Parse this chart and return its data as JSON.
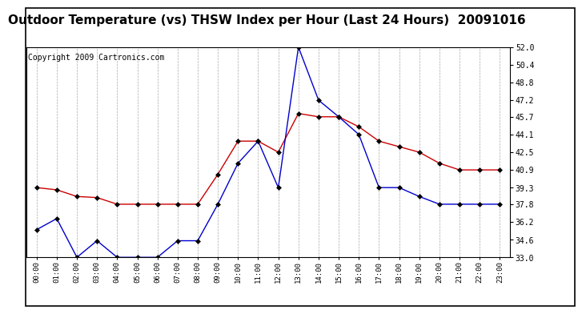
{
  "title": "Outdoor Temperature (vs) THSW Index per Hour (Last 24 Hours)  20091016",
  "copyright": "Copyright 2009 Cartronics.com",
  "hours": [
    0,
    1,
    2,
    3,
    4,
    5,
    6,
    7,
    8,
    9,
    10,
    11,
    12,
    13,
    14,
    15,
    16,
    17,
    18,
    19,
    20,
    21,
    22,
    23
  ],
  "hour_labels": [
    "00:00",
    "01:00",
    "02:00",
    "03:00",
    "04:00",
    "05:00",
    "06:00",
    "07:00",
    "08:00",
    "09:00",
    "10:00",
    "11:00",
    "12:00",
    "13:00",
    "14:00",
    "15:00",
    "16:00",
    "17:00",
    "18:00",
    "19:00",
    "20:00",
    "21:00",
    "22:00",
    "23:00"
  ],
  "temp_red": [
    39.3,
    39.1,
    38.5,
    38.4,
    37.8,
    37.8,
    37.8,
    37.8,
    37.8,
    40.5,
    43.5,
    43.5,
    42.5,
    46.0,
    45.7,
    45.7,
    44.8,
    43.5,
    43.0,
    42.5,
    41.5,
    40.9,
    40.9,
    40.9
  ],
  "thsw_blue": [
    35.5,
    36.5,
    33.0,
    34.5,
    33.0,
    33.0,
    33.0,
    34.5,
    34.5,
    37.8,
    41.5,
    43.5,
    39.3,
    52.0,
    47.2,
    45.7,
    44.1,
    39.3,
    39.3,
    38.5,
    37.8,
    37.8,
    37.8,
    37.8
  ],
  "ylim": [
    33.0,
    52.0
  ],
  "yticks": [
    33.0,
    34.6,
    36.2,
    37.8,
    39.3,
    40.9,
    42.5,
    44.1,
    45.7,
    47.2,
    48.8,
    50.4,
    52.0
  ],
  "red_color": "#cc0000",
  "blue_color": "#0000cc",
  "bg_color": "#ffffff",
  "grid_color": "#aaaaaa",
  "title_fontsize": 11,
  "copyright_fontsize": 7
}
